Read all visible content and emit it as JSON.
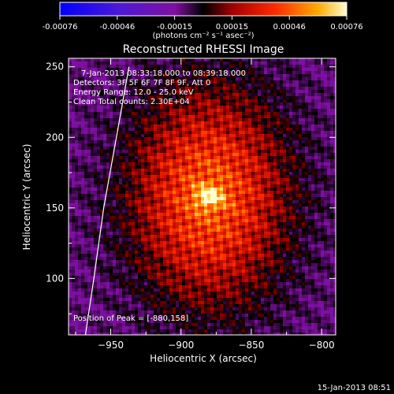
{
  "chart_data": {
    "type": "heatmap",
    "title": "Reconstructed RHESSI Image",
    "xlabel": "Heliocentric X (arcsec)",
    "ylabel": "Heliocentric Y (arcsec)",
    "xlim": [
      -980,
      -790
    ],
    "ylim": [
      60,
      256
    ],
    "xticks": [
      -950,
      -900,
      -850,
      -800
    ],
    "yticks": [
      100,
      150,
      200,
      250
    ],
    "colorbar": {
      "label": "(photons cm⁻² s⁻¹ asec⁻²)",
      "range": [
        -0.00076,
        0.00076
      ],
      "ticks": [
        "-0.00076",
        "-0.00046",
        "-0.00015",
        "0.00015",
        "0.00046",
        "0.00076"
      ]
    },
    "annotations": [
      "7-Jan-2013 08:33:18.000 to 08:39:18.000",
      "Detectors: 3F 5F 6F 7F 8F 9F, Att 0",
      "Energy Range: 12.0 - 25.0 keV",
      "Clean    Total counts: 2.30E+04"
    ],
    "peak_text": "Position of Peak = [-880,158]",
    "peak": {
      "x": -880,
      "y": 158,
      "value": 0.00076
    },
    "limb_curve": [
      [
        -968,
        60
      ],
      [
        -962,
        100
      ],
      [
        -955,
        150
      ],
      [
        -946,
        200
      ],
      [
        -937,
        250
      ]
    ],
    "footer": "15-Jan-2013 08:51",
    "colors": {
      "background": "#000000",
      "text": "#ffffff"
    }
  }
}
